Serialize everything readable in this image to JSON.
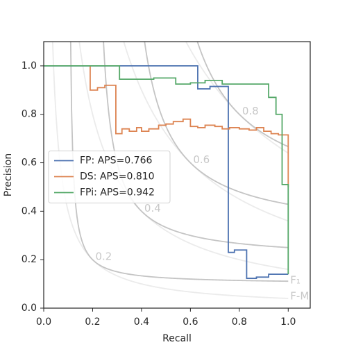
{
  "chart_data": {
    "type": "line",
    "xlabel": "Recall",
    "ylabel": "Precision",
    "xlim": [
      0,
      1.09
    ],
    "ylim": [
      0,
      1.1
    ],
    "xticks": [
      {
        "value": 0,
        "label": "0.0"
      },
      {
        "value": 0.2,
        "label": "0.2"
      },
      {
        "value": 0.4,
        "label": "0.4"
      },
      {
        "value": 0.6,
        "label": "0.6"
      },
      {
        "value": 0.8,
        "label": "0.8"
      },
      {
        "value": 1,
        "label": "1.0"
      }
    ],
    "yticks": [
      {
        "value": 0,
        "label": "0.0"
      },
      {
        "value": 0.2,
        "label": "0.2"
      },
      {
        "value": 0.4,
        "label": "0.4"
      },
      {
        "value": 0.6,
        "label": "0.6"
      },
      {
        "value": 0.8,
        "label": "0.8"
      },
      {
        "value": 1,
        "label": "1.0"
      }
    ],
    "iso_levels": [
      0.2,
      0.4,
      0.6,
      0.8
    ],
    "annotations": [
      "F₁",
      "F-M"
    ],
    "legend": "center left",
    "series": [
      {
        "name": "FP: APS=0.766",
        "color": "#4c72b0",
        "x": [
          0,
          0.63,
          0.63,
          0.68,
          0.68,
          0.755,
          0.755,
          0.78,
          0.78,
          0.83,
          0.83,
          0.87,
          0.87,
          0.92,
          0.92,
          1.0
        ],
        "values": [
          1.0,
          1.0,
          0.905,
          0.905,
          0.915,
          0.915,
          0.23,
          0.23,
          0.24,
          0.24,
          0.123,
          0.123,
          0.128,
          0.128,
          0.14,
          0.14
        ]
      },
      {
        "name": "DS: APS=0.810",
        "color": "#dd8452",
        "x": [
          0.19,
          0.19,
          0.22,
          0.22,
          0.25,
          0.25,
          0.295,
          0.295,
          0.32,
          0.32,
          0.35,
          0.35,
          0.38,
          0.38,
          0.4,
          0.4,
          0.43,
          0.43,
          0.47,
          0.47,
          0.5,
          0.5,
          0.53,
          0.53,
          0.57,
          0.57,
          0.6,
          0.6,
          0.63,
          0.63,
          0.66,
          0.66,
          0.7,
          0.7,
          0.73,
          0.73,
          0.76,
          0.76,
          0.8,
          0.8,
          0.84,
          0.84,
          0.87,
          0.87,
          0.9,
          0.9,
          0.93,
          0.93,
          0.96,
          0.96,
          1.0,
          1.0
        ],
        "values": [
          1.0,
          0.9,
          0.9,
          0.91,
          0.91,
          0.92,
          0.92,
          0.72,
          0.72,
          0.74,
          0.74,
          0.73,
          0.73,
          0.745,
          0.745,
          0.73,
          0.73,
          0.74,
          0.74,
          0.755,
          0.755,
          0.76,
          0.76,
          0.77,
          0.77,
          0.78,
          0.78,
          0.75,
          0.75,
          0.745,
          0.745,
          0.755,
          0.755,
          0.75,
          0.75,
          0.74,
          0.74,
          0.745,
          0.745,
          0.74,
          0.74,
          0.735,
          0.735,
          0.745,
          0.745,
          0.73,
          0.73,
          0.72,
          0.72,
          0.715,
          0.715,
          0.5
        ]
      },
      {
        "name": "FPi: APS=0.942",
        "color": "#55a868",
        "x": [
          0,
          0.31,
          0.31,
          0.45,
          0.45,
          0.54,
          0.54,
          0.6,
          0.6,
          0.66,
          0.66,
          0.73,
          0.73,
          0.92,
          0.92,
          0.95,
          0.95,
          0.975,
          0.975,
          1.0,
          1.0
        ],
        "values": [
          1.0,
          1.0,
          0.945,
          0.945,
          0.95,
          0.95,
          0.925,
          0.925,
          0.93,
          0.93,
          0.94,
          0.94,
          0.925,
          0.925,
          0.87,
          0.87,
          0.8,
          0.8,
          0.51,
          0.51,
          0.14
        ]
      }
    ]
  }
}
